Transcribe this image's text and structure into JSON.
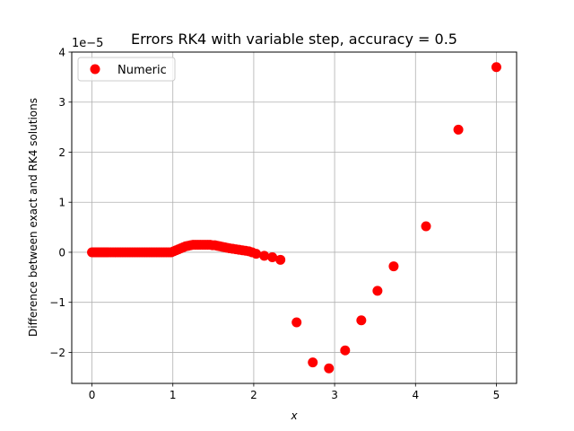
{
  "chart_data": {
    "type": "scatter",
    "title": "Errors RK4 with variable step, accuracy = 0.5",
    "xlabel": "x",
    "ylabel": "Difference between exact and RK4 solutions",
    "y_offset_label": "1e−5",
    "y_scale_multiplier": 1e-05,
    "xlim": [
      -0.25,
      5.25
    ],
    "ylim": [
      -2.62,
      4.0
    ],
    "x_ticks": [
      0,
      1,
      2,
      3,
      4,
      5
    ],
    "x_tick_labels": [
      "0",
      "1",
      "2",
      "3",
      "4",
      "5"
    ],
    "y_ticks": [
      -2,
      -1,
      0,
      1,
      2,
      3,
      4
    ],
    "y_tick_labels": [
      "−2",
      "−1",
      "0",
      "1",
      "2",
      "3",
      "4"
    ],
    "grid": true,
    "legend": {
      "position": "top-left",
      "entries": [
        "Numeric"
      ]
    },
    "series": [
      {
        "name": "Numeric",
        "color": "#ff0000",
        "marker": "circle",
        "x": [
          0.0,
          0.02,
          0.04,
          0.06,
          0.08,
          0.1,
          0.12,
          0.14,
          0.16,
          0.18,
          0.2,
          0.23,
          0.26,
          0.29,
          0.32,
          0.35,
          0.38,
          0.41,
          0.44,
          0.47,
          0.5,
          0.53,
          0.56,
          0.59,
          0.62,
          0.65,
          0.68,
          0.71,
          0.74,
          0.77,
          0.8,
          0.83,
          0.86,
          0.89,
          0.92,
          0.95,
          0.98,
          1.01,
          1.04,
          1.07,
          1.1,
          1.13,
          1.16,
          1.19,
          1.22,
          1.25,
          1.28,
          1.31,
          1.34,
          1.37,
          1.4,
          1.43,
          1.46,
          1.49,
          1.52,
          1.55,
          1.58,
          1.61,
          1.64,
          1.67,
          1.7,
          1.74,
          1.78,
          1.82,
          1.86,
          1.9,
          1.94,
          1.98,
          2.03,
          2.13,
          2.23,
          2.33,
          2.53,
          2.73,
          2.93,
          3.13,
          3.33,
          3.53,
          3.73,
          4.13,
          4.53,
          5.0
        ],
        "y": [
          0.0,
          0.0,
          0.0,
          0.0,
          0.0,
          0.0,
          0.0,
          0.0,
          0.0,
          0.0,
          0.0,
          0.0,
          0.0,
          0.0,
          0.0,
          0.0,
          0.0,
          0.0,
          0.0,
          0.0,
          0.0,
          0.0,
          0.0,
          0.0,
          0.0,
          0.0,
          0.0,
          0.0,
          0.0,
          0.0,
          0.0,
          0.0,
          0.0,
          0.0,
          0.0,
          0.0,
          0.0,
          0.02,
          0.04,
          0.06,
          0.08,
          0.1,
          0.12,
          0.13,
          0.14,
          0.15,
          0.15,
          0.15,
          0.15,
          0.15,
          0.15,
          0.15,
          0.15,
          0.14,
          0.14,
          0.13,
          0.12,
          0.11,
          0.1,
          0.09,
          0.08,
          0.07,
          0.06,
          0.05,
          0.04,
          0.03,
          0.02,
          0.0,
          -0.03,
          -0.07,
          -0.1,
          -0.15,
          -1.4,
          -2.2,
          -2.32,
          -1.96,
          -1.36,
          -0.77,
          -0.28,
          0.52,
          2.45,
          3.7
        ]
      }
    ]
  }
}
